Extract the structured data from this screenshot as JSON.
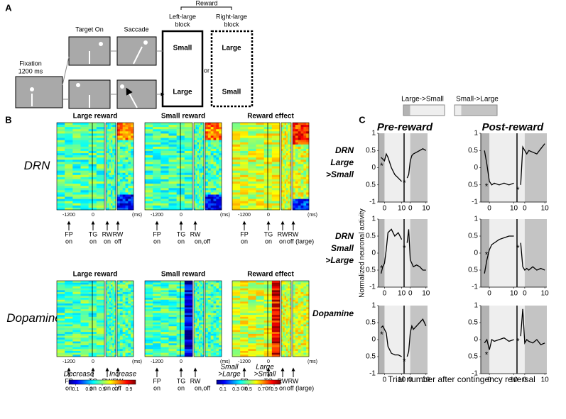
{
  "panel_a": {
    "label": "A",
    "fixation": [
      "Fixation",
      "1200 ms"
    ],
    "target_on": "Target On",
    "saccade": "Saccade",
    "reward": "Reward",
    "left_block": [
      "Left-large",
      "block"
    ],
    "right_block": [
      "Right-large",
      "block"
    ],
    "left_top": "Small",
    "left_bottom": "Large",
    "or": "or",
    "right_top": "Large",
    "right_bottom": "Small"
  },
  "panel_b": {
    "label": "B",
    "rows": [
      {
        "label": "DRN",
        "columns": [
          {
            "title": "Large reward",
            "events": [
              [
                "FP",
                "on"
              ],
              [
                "TG",
                "on"
              ],
              [
                "RW",
                "on"
              ],
              [
                "RW",
                "off"
              ]
            ]
          },
          {
            "title": "Small reward",
            "events": [
              [
                "FP",
                "on"
              ],
              [
                "TG",
                "on"
              ],
              [
                "RW",
                "on,off"
              ]
            ]
          },
          {
            "title": "Reward effect",
            "events": [
              [
                "FP",
                "on"
              ],
              [
                "TG",
                "on"
              ],
              [
                "RW",
                "on"
              ],
              [
                "RW",
                "off (large)"
              ]
            ]
          }
        ]
      },
      {
        "label": "Dopamine",
        "columns": [
          {
            "title": "Large reward",
            "events": [
              [
                "FP",
                "on"
              ],
              [
                "TG",
                "on"
              ],
              [
                "RW",
                "on"
              ],
              [
                "RW",
                "off"
              ]
            ]
          },
          {
            "title": "Small reward",
            "events": [
              [
                "FP",
                "on"
              ],
              [
                "TG",
                "on"
              ],
              [
                "RW",
                "on,off"
              ]
            ]
          },
          {
            "title": "Reward effect",
            "events": [
              [
                "FP",
                "on"
              ],
              [
                "TG",
                "on"
              ],
              [
                "RW",
                "on"
              ],
              [
                "RW",
                "off (large)"
              ]
            ]
          }
        ]
      }
    ],
    "time_ticks": [
      -1200,
      0
    ],
    "time_unit": "(ms)",
    "colorbars": [
      {
        "low": [
          "Decrease"
        ],
        "high": [
          "Increase"
        ],
        "ticks": [
          0.1,
          0.3,
          0.5,
          0.7,
          0.9
        ]
      },
      {
        "low": [
          "Small",
          ">Large"
        ],
        "high": [
          "Large",
          ">Small"
        ],
        "ticks": [
          0.1,
          0.3,
          0.5,
          0.7,
          0.9
        ]
      }
    ]
  },
  "panel_c": {
    "label": "C",
    "legend": [
      "Large->Small",
      "Small->Large"
    ],
    "columns": [
      "Pre-reward",
      "Post-reward"
    ],
    "rows": [
      [
        "DRN",
        "Large",
        ">Small"
      ],
      [
        "DRN",
        "Small",
        ">Large"
      ],
      [
        "Dopamine"
      ]
    ],
    "ylabel": "Normalized neuronal activity",
    "xlabel": "Trial number after contingency reversal",
    "asterisk": "*",
    "plots": [
      {
        "type": "line",
        "x": [
          -2,
          -1,
          0,
          1,
          2,
          4,
          6,
          8,
          10
        ],
        "xlim": [
          -3.5,
          11
        ],
        "xticks": [
          0,
          10
        ],
        "ylim": [
          -1,
          1
        ],
        "yticks": [
          1,
          0.5,
          0,
          {
            "value": -0.5,
            "label": "0.5"
          },
          -1
        ],
        "series": [
          {
            "color": "#000000",
            "values": [
              0.3,
              0.25,
              0.2,
              0.4,
              0.3,
              0.0,
              -0.2,
              -0.3,
              -0.4
            ]
          },
          {
            "color": "#000000",
            "values": [
              -0.3,
              -0.2,
              0.2,
              0.35,
              0.4,
              0.45,
              0.5,
              0.55,
              0.5
            ]
          }
        ]
      },
      {
        "type": "line",
        "x": [
          -2,
          -1,
          0,
          1,
          2,
          4,
          6,
          8,
          10
        ],
        "xlim": [
          -3.5,
          11
        ],
        "xticks": [
          0,
          10
        ],
        "ylim": [
          -1,
          1
        ],
        "yticks": [
          1,
          0.5,
          0,
          {
            "value": -0.5,
            "label": "0.5"
          },
          -1
        ],
        "series": [
          {
            "color": "#000000",
            "values": [
              0.5,
              0.1,
              -0.4,
              -0.5,
              -0.45,
              -0.5,
              -0.45,
              -0.5,
              -0.45
            ]
          },
          {
            "color": "#000000",
            "values": [
              -0.5,
              0.6,
              0.5,
              0.4,
              0.5,
              0.45,
              0.4,
              0.55,
              0.7
            ]
          }
        ]
      },
      {
        "type": "line",
        "x": [
          -2,
          -1,
          0,
          1,
          2,
          4,
          6,
          8,
          10
        ],
        "xlim": [
          -3.5,
          11
        ],
        "xticks": [
          0,
          10
        ],
        "ylim": [
          -1,
          1
        ],
        "yticks": [
          1,
          0.5,
          0,
          {
            "value": -0.5,
            "label": "0.5"
          },
          -1
        ],
        "series": [
          {
            "color": "#000000",
            "values": [
              -0.6,
              -0.4,
              -0.3,
              0.1,
              0.6,
              0.7,
              0.5,
              0.6,
              0.4
            ]
          },
          {
            "color": "#000000",
            "values": [
              0.3,
              0.7,
              -0.2,
              -0.3,
              -0.4,
              -0.35,
              -0.4,
              -0.5,
              -0.5
            ]
          }
        ]
      },
      {
        "type": "line",
        "x": [
          -2,
          -1,
          0,
          1,
          2,
          4,
          6,
          8,
          10
        ],
        "xlim": [
          -3.5,
          11
        ],
        "xticks": [
          0,
          10
        ],
        "ylim": [
          -1,
          1
        ],
        "yticks": [
          1,
          0.5,
          0,
          {
            "value": -0.5,
            "label": "0.5"
          },
          -1
        ],
        "series": [
          {
            "color": "#000000",
            "values": [
              -0.6,
              -0.2,
              0.1,
              0.25,
              0.3,
              0.4,
              0.45,
              0.5,
              0.5
            ]
          },
          {
            "color": "#000000",
            "values": [
              0.3,
              -0.4,
              -0.5,
              -0.45,
              -0.5,
              -0.4,
              -0.5,
              -0.45,
              -0.5
            ]
          }
        ]
      },
      {
        "type": "line",
        "x": [
          -2,
          -1,
          0,
          1,
          2,
          4,
          6,
          8,
          10
        ],
        "xlim": [
          -3.5,
          11
        ],
        "xticks": [
          0,
          10
        ],
        "ylim": [
          -1,
          1
        ],
        "yticks": [
          1,
          0.5,
          0,
          {
            "value": -0.5,
            "label": "0.5"
          },
          -1
        ],
        "series": [
          {
            "color": "#000000",
            "values": [
              0.35,
              0.4,
              0.3,
              0.2,
              -0.2,
              -0.4,
              -0.45,
              -0.45,
              -0.5
            ]
          },
          {
            "color": "#000000",
            "values": [
              -0.5,
              -0.35,
              0.2,
              0.4,
              0.3,
              0.4,
              0.5,
              0.6,
              0.4
            ]
          }
        ]
      },
      {
        "type": "line",
        "x": [
          -2,
          -1,
          0,
          1,
          2,
          4,
          6,
          8,
          10
        ],
        "xlim": [
          -3.5,
          11
        ],
        "xticks": [
          0,
          10
        ],
        "ylim": [
          -1,
          1
        ],
        "yticks": [
          1,
          0.5,
          0,
          {
            "value": -0.5,
            "label": "0.5"
          },
          -1
        ],
        "series": [
          {
            "color": "#000000",
            "values": [
              -0.1,
              0.0,
              -0.3,
              0.0,
              -0.05,
              0.0,
              0.05,
              -0.05,
              0.0
            ]
          },
          {
            "color": "#000000",
            "values": [
              0.1,
              0.9,
              -0.1,
              0.0,
              -0.05,
              -0.1,
              0.0,
              -0.15,
              -0.1
            ]
          }
        ]
      }
    ]
  }
}
